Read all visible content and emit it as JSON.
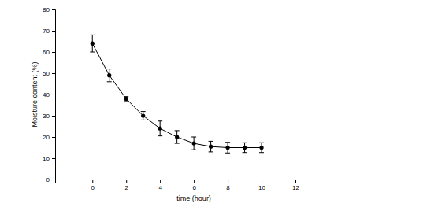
{
  "chart_data": {
    "type": "line",
    "x_label": "time (hour)",
    "y_label": "Moisture content (%)",
    "x": [
      0,
      1,
      2,
      3,
      4,
      5,
      6,
      7,
      8,
      9,
      10
    ],
    "values": [
      64,
      49,
      38,
      30,
      24,
      20,
      17,
      15.5,
      15,
      15,
      15
    ],
    "errors": [
      4,
      3,
      1,
      2,
      3.5,
      3,
      3,
      2.5,
      2.5,
      2.3,
      2.3
    ],
    "color": "#000000",
    "marker": "circle",
    "line_style": "solid",
    "xlim": [
      -2.2,
      12
    ],
    "xticks": [
      0,
      2,
      4,
      6,
      8,
      10,
      12
    ],
    "ylim": [
      0,
      80
    ],
    "yticks": [
      0,
      10,
      20,
      30,
      40,
      50,
      60,
      70,
      80
    ],
    "grid": false
  }
}
